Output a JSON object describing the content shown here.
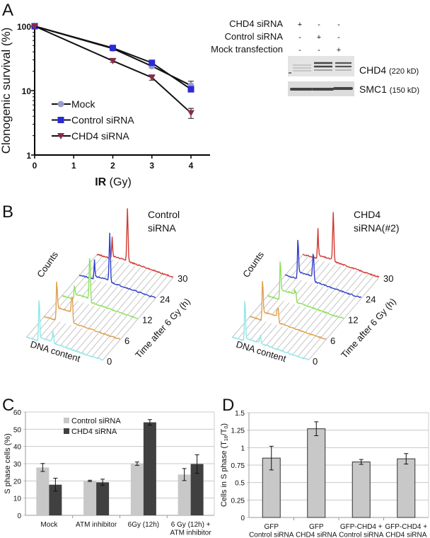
{
  "panels": {
    "a": "A",
    "b": "B",
    "c": "C",
    "d": "D"
  },
  "western_blot": {
    "row_labels": [
      "CHD4 siRNA",
      "Control siRNA",
      "Mock transfection"
    ],
    "signs": [
      [
        "+",
        "-",
        "-"
      ],
      [
        "-",
        "+",
        "-"
      ],
      [
        "-",
        "-",
        "+"
      ]
    ],
    "bands": [
      {
        "name": "CHD4",
        "size": "(220 kD)"
      },
      {
        "name": "SMC1",
        "size": "(150 kD)"
      }
    ]
  },
  "chart_data": [
    {
      "panel": "A",
      "type": "line",
      "xlabel_bold": "IR",
      "xlabel_unit": "(Gy)",
      "ylabel": "Clonogenic survival (%)",
      "yscale": "log",
      "xlim": [
        0,
        4
      ],
      "ylim": [
        1,
        100
      ],
      "xticks": [
        "0",
        "1",
        "2",
        "3",
        "4"
      ],
      "yticks": [
        "1",
        "10",
        "100"
      ],
      "legend": "bottom-left",
      "series": [
        {
          "name": "Mock",
          "color": "#9b9bd0",
          "marker": "circle",
          "x": [
            0,
            2,
            3,
            4
          ],
          "y": [
            100,
            45,
            24,
            12
          ],
          "err": [
            0,
            2,
            1.5,
            2
          ]
        },
        {
          "name": "Control siRNA",
          "color": "#2a2ad6",
          "marker": "square",
          "x": [
            0,
            2,
            3,
            4
          ],
          "y": [
            100,
            46,
            27,
            10.5
          ],
          "err": [
            0,
            2,
            2,
            1
          ]
        },
        {
          "name": "CHD4 siRNA",
          "color": "#8b2a4a",
          "marker": "triangle-down",
          "x": [
            0,
            2,
            3,
            4
          ],
          "y": [
            100,
            29,
            16,
            4.5
          ],
          "err": [
            0,
            1.5,
            1.5,
            0.8
          ]
        }
      ]
    },
    {
      "panel": "B",
      "type": "area",
      "xlabel": "DNA content",
      "ylabel": "Counts",
      "zlabel": "Time after 6 Gy (h)",
      "times": [
        "0",
        "6",
        "12",
        "24",
        "30"
      ],
      "colors": [
        "#8ee8ea",
        "#e0a050",
        "#8fe060",
        "#3040c8",
        "#d03a30"
      ],
      "subplots": [
        {
          "title": [
            "Control",
            "siRNA"
          ]
        },
        {
          "title": [
            "CHD4",
            "siRNA(#2)"
          ]
        }
      ]
    },
    {
      "panel": "C",
      "type": "bar",
      "ylabel": "S phase cells (%)",
      "ylim": [
        0,
        60
      ],
      "yticks": [
        "0",
        "10",
        "20",
        "30",
        "40",
        "50",
        "60"
      ],
      "grid": true,
      "legend": "top-left",
      "categories": [
        [
          "Mock"
        ],
        [
          "ATM inhibitor"
        ],
        [
          "6Gy (12h)"
        ],
        [
          "6 Gy (12h) +",
          "ATM inhibitor"
        ]
      ],
      "series": [
        {
          "name": "Control siRNA",
          "color": "#c8c8c8",
          "values": [
            27.8,
            20.0,
            30.0,
            23.7
          ],
          "err": [
            2.3,
            0.4,
            1.0,
            3.5
          ]
        },
        {
          "name": "CHD4 siRNA",
          "color": "#404040",
          "values": [
            17.8,
            19.2,
            54.0,
            29.8
          ],
          "err": [
            3.8,
            1.8,
            1.6,
            5.4
          ]
        }
      ]
    },
    {
      "panel": "D",
      "type": "bar",
      "ylabel_parts": [
        "Cells in S phase (T",
        "16",
        "/T",
        "0",
        ")"
      ],
      "ylim": [
        0,
        1.5
      ],
      "yticks": [
        "0",
        "0.25",
        "0.5",
        "0.75",
        "1",
        "1.25",
        "1.5"
      ],
      "grid": true,
      "categories": [
        [
          "GFP",
          "Control siRNA"
        ],
        [
          "GFP",
          "CHD4 siRNA"
        ],
        [
          "GFP-CHD4 +",
          "Control siRNA"
        ],
        [
          "GFP-CHD4 +",
          "CHD4 siRNA"
        ]
      ],
      "series": [
        {
          "color": "#c8c8c8",
          "values": [
            0.85,
            1.27,
            0.795,
            0.84
          ],
          "err": [
            0.17,
            0.1,
            0.035,
            0.075
          ]
        }
      ]
    }
  ]
}
